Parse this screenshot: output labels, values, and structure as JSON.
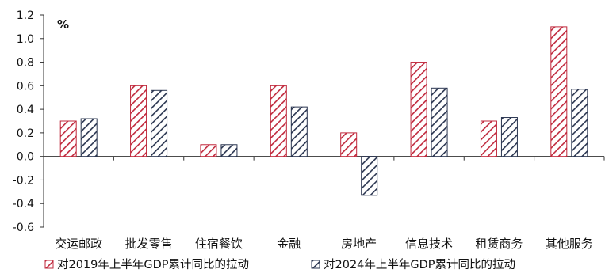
{
  "chart_data": {
    "type": "bar",
    "unit_label": "%",
    "categories": [
      "交运邮政",
      "批发零售",
      "住宿餐饮",
      "金融",
      "房地产",
      "信息技术",
      "租赁商务",
      "其他服务"
    ],
    "series": [
      {
        "name": "对2019年上半年GDP累计同比的拉动",
        "values": [
          0.3,
          0.6,
          0.1,
          0.6,
          0.2,
          0.8,
          0.3,
          1.1
        ],
        "color": "#c0283c"
      },
      {
        "name": "对2024年上半年GDP累计同比的拉动",
        "values": [
          0.32,
          0.56,
          0.1,
          0.42,
          -0.33,
          0.58,
          0.33,
          0.57
        ],
        "color": "#2a3550"
      }
    ],
    "ylim": [
      -0.6,
      1.2
    ],
    "yticks": [
      "1.2",
      "1.0",
      "0.8",
      "0.6",
      "0.4",
      "0.2",
      "0.0",
      "-0.2",
      "-0.4",
      "-0.6"
    ],
    "ytick_values": [
      1.2,
      1.0,
      0.8,
      0.6,
      0.4,
      0.2,
      0.0,
      -0.2,
      -0.4,
      -0.6
    ],
    "grid": false,
    "legend_position": "bottom"
  }
}
